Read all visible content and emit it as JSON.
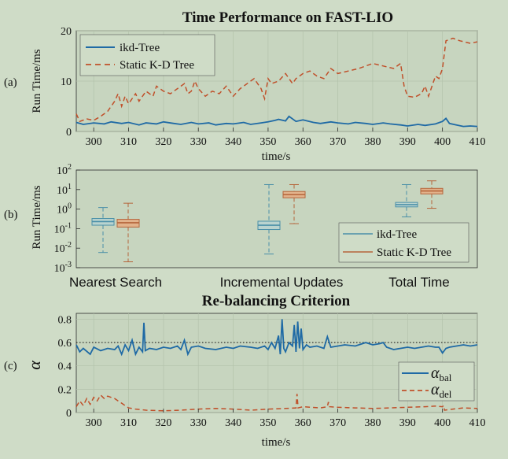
{
  "chart_data": [
    {
      "id": "a",
      "panel_label": "(a)",
      "type": "line",
      "title": "Time Performance on FAST-LIO",
      "xlabel": "time/s",
      "ylabel": "Run Time/ms",
      "xlim": [
        295,
        410
      ],
      "ylim": [
        0,
        20
      ],
      "xticks": [
        300,
        310,
        320,
        330,
        340,
        350,
        360,
        370,
        380,
        390,
        400,
        410
      ],
      "yticks": [
        0,
        10,
        20
      ],
      "grid": true,
      "legend": "top-left",
      "series": [
        {
          "name": "ikd-Tree",
          "style": "solid",
          "color": "#1f6aa5",
          "x": [
            295,
            297,
            300,
            303,
            305,
            308,
            310,
            313,
            315,
            318,
            320,
            323,
            325,
            328,
            330,
            333,
            335,
            338,
            340,
            343,
            345,
            348,
            350,
            352,
            353,
            355,
            356,
            358,
            360,
            363,
            365,
            368,
            370,
            373,
            375,
            378,
            380,
            383,
            385,
            388,
            390,
            393,
            395,
            398,
            400,
            401,
            402,
            404,
            406,
            408,
            410
          ],
          "values": [
            1.8,
            1.4,
            1.7,
            1.5,
            1.9,
            1.6,
            1.8,
            1.3,
            1.7,
            1.5,
            1.9,
            1.6,
            1.4,
            1.8,
            1.5,
            1.7,
            1.3,
            1.6,
            1.5,
            1.8,
            1.4,
            1.7,
            1.9,
            2.2,
            2.4,
            2.1,
            3.0,
            2.0,
            2.3,
            1.8,
            1.6,
            1.9,
            1.7,
            1.5,
            1.8,
            1.6,
            1.4,
            1.7,
            1.5,
            1.3,
            1.1,
            1.4,
            1.2,
            1.5,
            2.0,
            2.6,
            1.6,
            1.3,
            1.0,
            1.1,
            1.0
          ]
        },
        {
          "name": "Static K-D Tree",
          "style": "dashed",
          "color": "#c0502a",
          "x": [
            295,
            296,
            298,
            300,
            302,
            304,
            306,
            307,
            308,
            309,
            310,
            312,
            313,
            315,
            317,
            318,
            320,
            322,
            324,
            326,
            327,
            328,
            329,
            330,
            332,
            334,
            336,
            338,
            340,
            342,
            344,
            346,
            348,
            349,
            350,
            351,
            353,
            355,
            357,
            358,
            360,
            362,
            364,
            366,
            368,
            370,
            373,
            376,
            378,
            380,
            383,
            386,
            388,
            389,
            390,
            392,
            394,
            395,
            396,
            398,
            399,
            400,
            401,
            403,
            405,
            408,
            410
          ],
          "values": [
            3.5,
            2.0,
            2.5,
            2.2,
            3.0,
            4.0,
            6.0,
            7.5,
            5.0,
            7.0,
            5.5,
            7.5,
            6.0,
            8.0,
            7.0,
            9.0,
            8.0,
            7.5,
            8.5,
            9.5,
            7.5,
            8.0,
            10.0,
            8.5,
            7.0,
            8.0,
            7.5,
            9.0,
            7.0,
            8.5,
            9.5,
            10.5,
            8.5,
            6.5,
            10.5,
            9.5,
            10.0,
            11.5,
            9.5,
            10.5,
            11.5,
            12.0,
            11.0,
            10.5,
            12.5,
            11.5,
            12.0,
            12.5,
            13.0,
            13.5,
            13.0,
            12.5,
            13.5,
            9.0,
            7.0,
            6.8,
            7.5,
            9.0,
            7.0,
            11.0,
            10.5,
            12.5,
            18.0,
            18.5,
            18.0,
            17.5,
            17.8
          ]
        }
      ]
    },
    {
      "id": "b",
      "panel_label": "(b)",
      "type": "box",
      "ylabel": "Run Time/ms",
      "yscale": "log",
      "ylim_exp": [
        -3,
        2
      ],
      "ytick_exponents": [
        -3,
        -2,
        -1,
        0,
        1,
        2
      ],
      "categories": [
        "Nearest Search",
        "Incremental Updates",
        "Total Time"
      ],
      "legend": "bottom-right",
      "series": [
        {
          "name": "ikd-Tree",
          "color": "#4a8fa8",
          "fill": "#b9d3cf",
          "boxes": [
            {
              "min": 0.006,
              "q1": 0.15,
              "median": 0.23,
              "q3": 0.33,
              "max": 1.2
            },
            {
              "min": 0.005,
              "q1": 0.09,
              "median": 0.15,
              "q3": 0.24,
              "max": 18
            },
            {
              "min": 0.4,
              "q1": 1.3,
              "median": 1.7,
              "q3": 2.2,
              "max": 18
            }
          ]
        },
        {
          "name": "Static K-D Tree",
          "color": "#b5653b",
          "fill": "#e2b28b",
          "boxes": [
            {
              "min": 0.002,
              "q1": 0.12,
              "median": 0.2,
              "q3": 0.3,
              "max": 2.0
            },
            {
              "min": 0.18,
              "q1": 3.8,
              "median": 5.5,
              "q3": 8.0,
              "max": 18
            },
            {
              "min": 1.1,
              "q1": 6.0,
              "median": 8.5,
              "q3": 11.5,
              "max": 28
            }
          ]
        }
      ]
    },
    {
      "id": "c",
      "panel_label": "(c)",
      "type": "line",
      "title": "Re-balancing Criterion",
      "xlabel": "time/s",
      "ylabel": "α",
      "xlim": [
        295,
        410
      ],
      "ylim": [
        0,
        0.85
      ],
      "xticks": [
        300,
        310,
        320,
        330,
        340,
        350,
        360,
        370,
        380,
        390,
        400,
        410
      ],
      "yticks": [
        0,
        0.2,
        0.4,
        0.6,
        0.8
      ],
      "threshold": 0.6,
      "grid": true,
      "legend": "bottom-right",
      "series": [
        {
          "name": "α_bal",
          "symbol": "α",
          "subscript": "bal",
          "style": "solid",
          "color": "#1f6aa5",
          "x": [
            295,
            296,
            297,
            299,
            300,
            302,
            304,
            306,
            307,
            308,
            309,
            310,
            311,
            312,
            313,
            314,
            314.4,
            314.8,
            316,
            318,
            320,
            322,
            324,
            325,
            326,
            327,
            328,
            330,
            332,
            335,
            338,
            340,
            342,
            345,
            347,
            349,
            350,
            351,
            352,
            353,
            353.5,
            354,
            354.5,
            355,
            356,
            357,
            357.5,
            358,
            358.5,
            359,
            359.5,
            360,
            361,
            362,
            364,
            366,
            367,
            368,
            370,
            372,
            375,
            378,
            380,
            382,
            383,
            384,
            386,
            388,
            390,
            392,
            394,
            396,
            398,
            399,
            400,
            401,
            402,
            404,
            406,
            408,
            410
          ],
          "values": [
            0.58,
            0.52,
            0.55,
            0.5,
            0.56,
            0.53,
            0.55,
            0.54,
            0.57,
            0.5,
            0.58,
            0.53,
            0.62,
            0.5,
            0.56,
            0.52,
            0.77,
            0.53,
            0.55,
            0.54,
            0.56,
            0.55,
            0.57,
            0.54,
            0.62,
            0.5,
            0.56,
            0.57,
            0.55,
            0.54,
            0.56,
            0.55,
            0.57,
            0.56,
            0.55,
            0.57,
            0.54,
            0.6,
            0.55,
            0.66,
            0.5,
            0.8,
            0.55,
            0.52,
            0.6,
            0.57,
            0.75,
            0.52,
            0.78,
            0.55,
            0.72,
            0.54,
            0.58,
            0.56,
            0.57,
            0.55,
            0.65,
            0.56,
            0.57,
            0.58,
            0.57,
            0.6,
            0.58,
            0.59,
            0.6,
            0.56,
            0.54,
            0.55,
            0.56,
            0.55,
            0.56,
            0.57,
            0.56,
            0.56,
            0.51,
            0.55,
            0.56,
            0.57,
            0.58,
            0.57,
            0.58
          ]
        },
        {
          "name": "α_del",
          "symbol": "α",
          "subscript": "del",
          "style": "dashed",
          "color": "#c0502a",
          "x": [
            295,
            296,
            297,
            298,
            299,
            300,
            301,
            302,
            303,
            304,
            305,
            306,
            307,
            308,
            309,
            310,
            312,
            315,
            320,
            325,
            330,
            335,
            340,
            345,
            350,
            355,
            358,
            358.3,
            358.6,
            360,
            365,
            367,
            367.3,
            367.6,
            370,
            375,
            380,
            385,
            390,
            395,
            398,
            400,
            400.3,
            400.6,
            403,
            406,
            410
          ],
          "values": [
            0.05,
            0.1,
            0.06,
            0.12,
            0.07,
            0.13,
            0.1,
            0.15,
            0.12,
            0.14,
            0.13,
            0.12,
            0.1,
            0.08,
            0.06,
            0.04,
            0.03,
            0.02,
            0.015,
            0.02,
            0.03,
            0.035,
            0.03,
            0.02,
            0.03,
            0.035,
            0.04,
            0.16,
            0.04,
            0.05,
            0.04,
            0.05,
            0.09,
            0.05,
            0.045,
            0.04,
            0.035,
            0.04,
            0.045,
            0.05,
            0.055,
            0.05,
            0.06,
            0.02,
            0.03,
            0.04,
            0.035
          ]
        }
      ]
    }
  ]
}
